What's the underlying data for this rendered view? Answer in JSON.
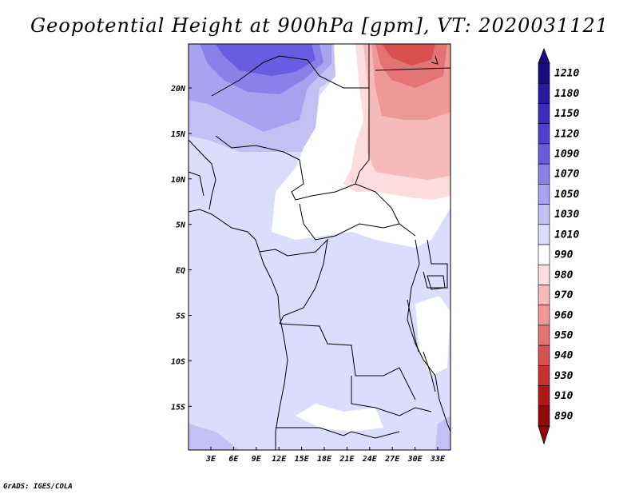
{
  "title": "Geopotential Height at 900hPa [gpm], VT: 2020031121",
  "credit": "GrADS: IGES/COLA",
  "map": {
    "lat_labels": [
      "20N",
      "15N",
      "10N",
      "5N",
      "EQ",
      "5S",
      "10S",
      "15S"
    ],
    "lon_labels": [
      "3E",
      "6E",
      "9E",
      "12E",
      "15E",
      "18E",
      "21E",
      "24E",
      "27E",
      "30E",
      "33E"
    ]
  },
  "colorbar": {
    "levels": [
      "1210",
      "1180",
      "1150",
      "1120",
      "1090",
      "1070",
      "1050",
      "1030",
      "1010",
      "990",
      "980",
      "970",
      "960",
      "950",
      "940",
      "930",
      "910",
      "890"
    ],
    "colors": [
      "#1a0c80",
      "#261aa0",
      "#3a2cc0",
      "#5040d2",
      "#6a5ce0",
      "#8a80e8",
      "#a8a2f0",
      "#c4c0f4",
      "#dcdcfc",
      "#ffffff",
      "#fcdcdc",
      "#f6baba",
      "#ee9898",
      "#e47474",
      "#d85050",
      "#c83030",
      "#b01818",
      "#900a0a"
    ],
    "top_arrow_color": "#1a0c80",
    "bottom_arrow_color": "#900a0a"
  }
}
